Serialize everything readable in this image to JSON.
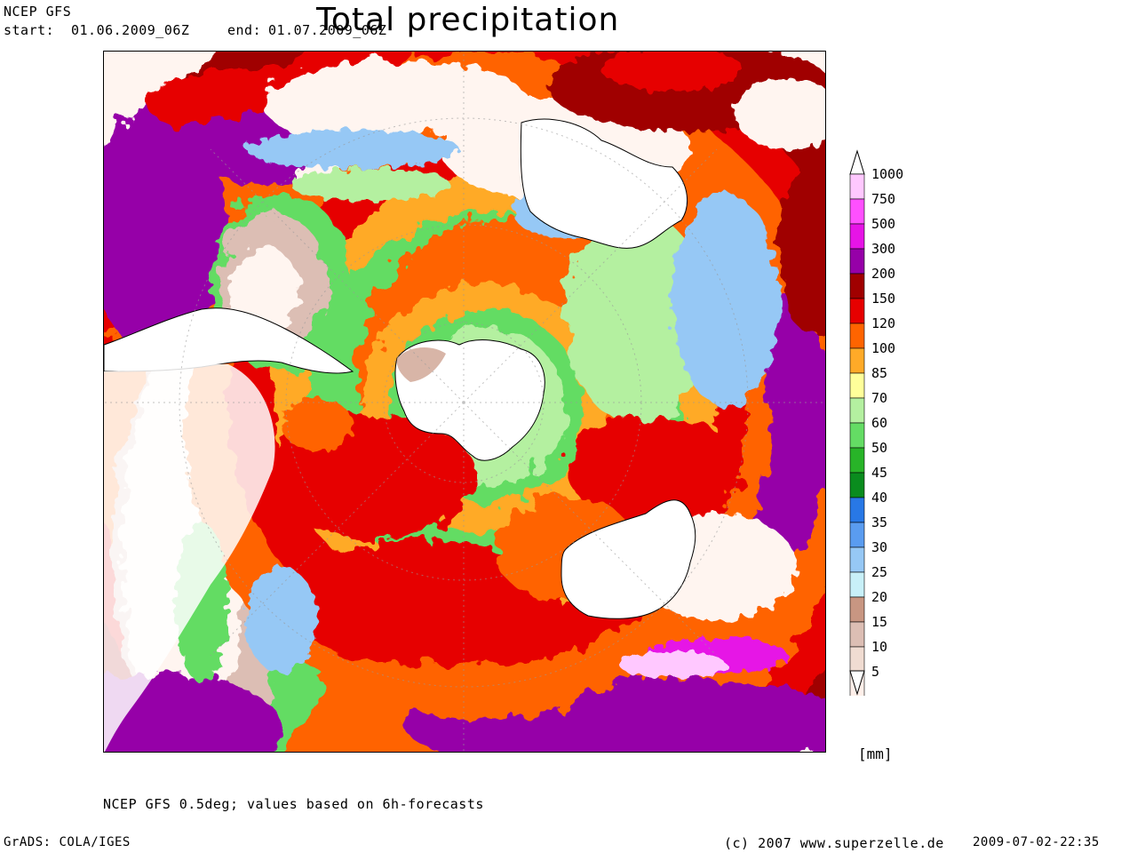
{
  "header": {
    "source": "NCEP GFS",
    "start_label": "start:",
    "start_value": "01.06.2009_06Z",
    "end_label": "end:",
    "end_value": "01.07.2009_06Z",
    "title": "Total precipitation"
  },
  "legend": {
    "unit": "[mm]",
    "levels": [
      {
        "label": "1000",
        "color": "#ffc8ff"
      },
      {
        "label": "750",
        "color": "#ff50ff"
      },
      {
        "label": "500",
        "color": "#e614e6"
      },
      {
        "label": "300",
        "color": "#9600a8"
      },
      {
        "label": "200",
        "color": "#a00000"
      },
      {
        "label": "150",
        "color": "#e60000"
      },
      {
        "label": "120",
        "color": "#ff6400"
      },
      {
        "label": "100",
        "color": "#ffaa28"
      },
      {
        "label": "85",
        "color": "#ffff9a"
      },
      {
        "label": "70",
        "color": "#b4f0a0"
      },
      {
        "label": "60",
        "color": "#64dc64"
      },
      {
        "label": "50",
        "color": "#28b428"
      },
      {
        "label": "45",
        "color": "#0a8c1e"
      },
      {
        "label": "40",
        "color": "#2878e6"
      },
      {
        "label": "35",
        "color": "#5a9cf0"
      },
      {
        "label": "30",
        "color": "#96c8f5"
      },
      {
        "label": "25",
        "color": "#c8f0f8"
      },
      {
        "label": "20",
        "color": "#c89682"
      },
      {
        "label": "15",
        "color": "#dcbeb4"
      },
      {
        "label": "10",
        "color": "#f0dcd2"
      },
      {
        "label": "5",
        "color": "#fff0ea"
      }
    ]
  },
  "footer": {
    "model_note": "NCEP GFS 0.5deg; values based on 6h-forecasts",
    "grads": "GrADS: COLA/IGES",
    "copyright": "(c) 2007 www.superzelle.de",
    "timestamp": "2009-07-02-22:35"
  }
}
